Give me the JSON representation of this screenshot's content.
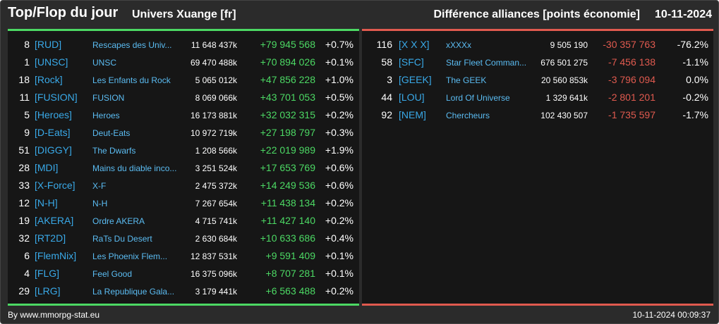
{
  "header": {
    "title": "Top/Flop du jour",
    "universe": "Univers Xuange [fr]",
    "subtitle": "Différence alliances [points économie]",
    "date": "10-11-2024"
  },
  "colors": {
    "positive": "#4cd964",
    "negative": "#e05a4f",
    "tag": "#39a9e8"
  },
  "top": [
    {
      "rank": "8",
      "tag": "[RUD]",
      "name": "Rescapes des Univ...",
      "points": "11 648 437k",
      "diff": "+79 945 568",
      "pct": "+0.7%"
    },
    {
      "rank": "1",
      "tag": "[UNSC]",
      "name": "UNSC",
      "points": "69 470 488k",
      "diff": "+70 894 026",
      "pct": "+0.1%"
    },
    {
      "rank": "18",
      "tag": "[Rock]",
      "name": "Les Enfants du Rock",
      "points": "5 065 012k",
      "diff": "+47 856 228",
      "pct": "+1.0%"
    },
    {
      "rank": "11",
      "tag": "[FUSION]",
      "name": "FUSION",
      "points": "8 069 066k",
      "diff": "+43 701 053",
      "pct": "+0.5%"
    },
    {
      "rank": "5",
      "tag": "[Heroes]",
      "name": "Heroes",
      "points": "16 173 881k",
      "diff": "+32 032 315",
      "pct": "+0.2%"
    },
    {
      "rank": "9",
      "tag": "[D-Eats]",
      "name": "Deut-Eats",
      "points": "10 972 719k",
      "diff": "+27 198 797",
      "pct": "+0.3%"
    },
    {
      "rank": "51",
      "tag": "[DIGGY]",
      "name": "The Dwarfs",
      "points": "1 208 566k",
      "diff": "+22 019 989",
      "pct": "+1.9%"
    },
    {
      "rank": "28",
      "tag": "[MDI]",
      "name": "Mains du diable inco...",
      "points": "3 251 524k",
      "diff": "+17 653 769",
      "pct": "+0.6%"
    },
    {
      "rank": "33",
      "tag": "[X-Force]",
      "name": "X-F",
      "points": "2 475 372k",
      "diff": "+14 249 536",
      "pct": "+0.6%"
    },
    {
      "rank": "12",
      "tag": "[N-H]",
      "name": "N-H",
      "points": "7 267 654k",
      "diff": "+11 438 134",
      "pct": "+0.2%"
    },
    {
      "rank": "19",
      "tag": "[AKERA]",
      "name": "Ordre AKERA",
      "points": "4 715 741k",
      "diff": "+11 427 140",
      "pct": "+0.2%"
    },
    {
      "rank": "32",
      "tag": "[RT2D]",
      "name": "RaTs Du Desert",
      "points": "2 630 684k",
      "diff": "+10 633 686",
      "pct": "+0.4%"
    },
    {
      "rank": "6",
      "tag": "[FlemNix]",
      "name": "Les Phoenix Flem...",
      "points": "12 837 531k",
      "diff": "+9 591 409",
      "pct": "+0.1%"
    },
    {
      "rank": "4",
      "tag": "[FLG]",
      "name": "Feel Good",
      "points": "16 375 096k",
      "diff": "+8 707 281",
      "pct": "+0.1%"
    },
    {
      "rank": "29",
      "tag": "[LRG]",
      "name": "La Republique Gala...",
      "points": "3 179 441k",
      "diff": "+6 563 488",
      "pct": "+0.2%"
    }
  ],
  "flop": [
    {
      "rank": "116",
      "tag": "[X X X]",
      "name": "xXXXx",
      "points": "9 505 190",
      "diff": "-30 357 763",
      "pct": "-76.2%"
    },
    {
      "rank": "58",
      "tag": "[SFC]",
      "name": "Star Fleet Comman...",
      "points": "676 501 275",
      "diff": "-7 456 138",
      "pct": "-1.1%"
    },
    {
      "rank": "3",
      "tag": "[GEEK]",
      "name": "The GEEK",
      "points": "20 560 853k",
      "diff": "-3 796 094",
      "pct": "0.0%"
    },
    {
      "rank": "44",
      "tag": "[LOU]",
      "name": "Lord Of Universe",
      "points": "1 329 641k",
      "diff": "-2 801 201",
      "pct": "-0.2%"
    },
    {
      "rank": "92",
      "tag": "[NEM]",
      "name": "Chercheurs",
      "points": "102 430 507",
      "diff": "-1 735 597",
      "pct": "-1.7%"
    }
  ],
  "footer": {
    "credit": "By www.mmorpg-stat.eu",
    "timestamp": "10-11-2024 00:09:37"
  }
}
